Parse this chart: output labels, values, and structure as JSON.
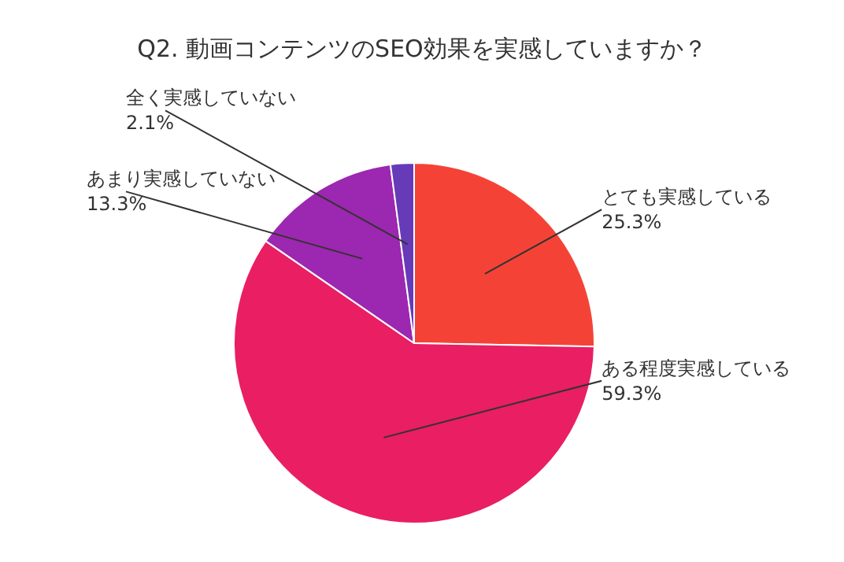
{
  "chart_data": {
    "type": "pie",
    "title": "Q2. 動画コンテンツのSEO効果を実感していますか？",
    "categories": [
      "とても実感している",
      "ある程度実感している",
      "あまり実感していない",
      "全く実感していない"
    ],
    "values": [
      25.3,
      59.3,
      13.3,
      2.1
    ],
    "value_labels": [
      "25.3%",
      "59.3%",
      "13.3%",
      "2.1%"
    ],
    "colors": [
      "#f44336",
      "#e91e63",
      "#9c27b0",
      "#673ab7"
    ],
    "legend": false
  }
}
